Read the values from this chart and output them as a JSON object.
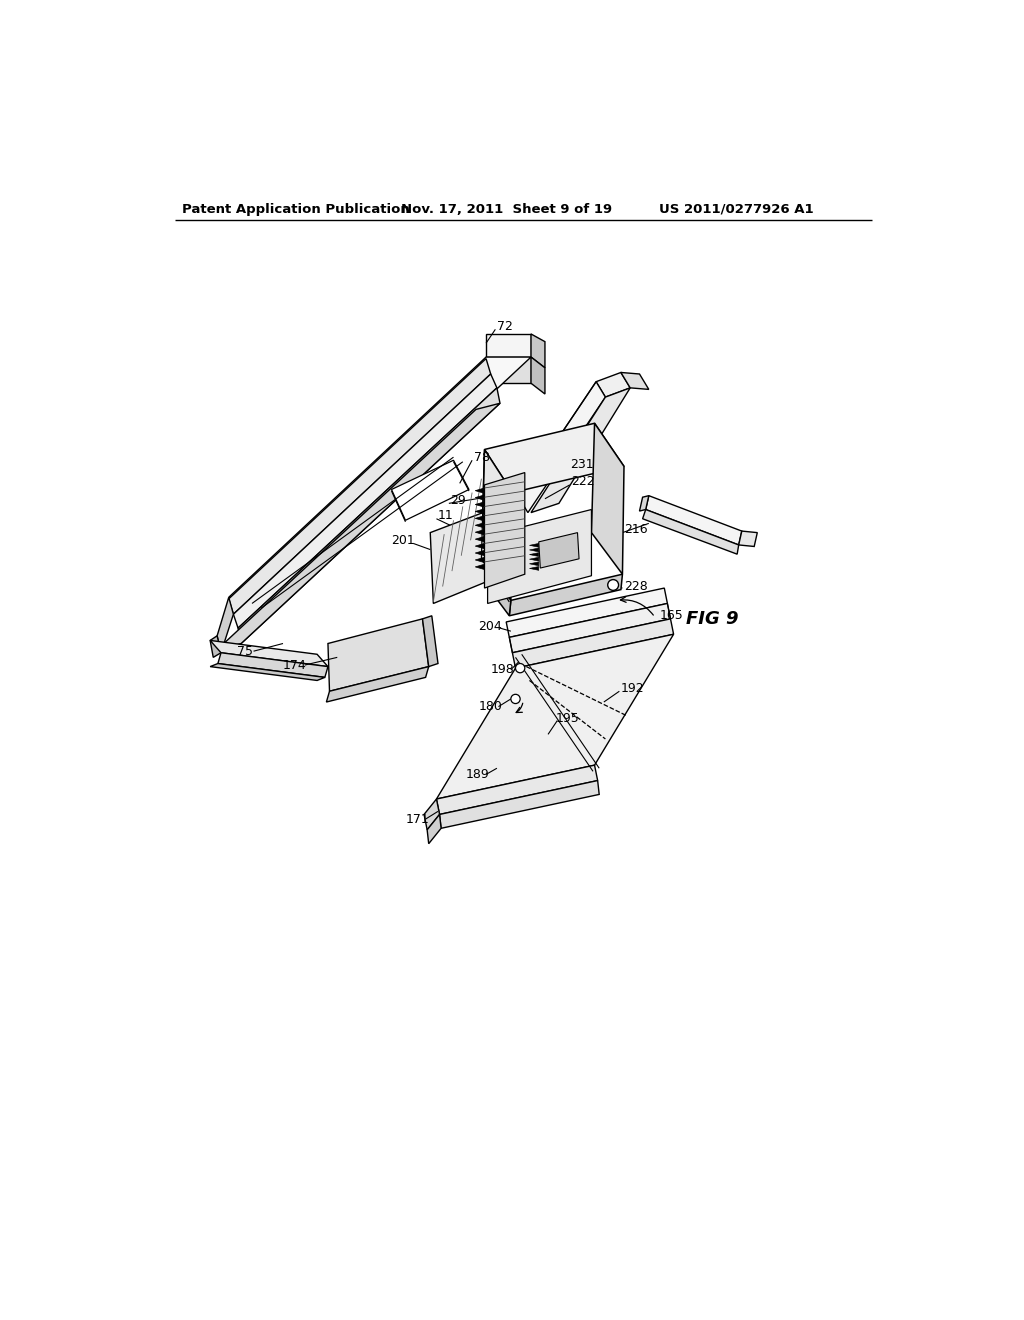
{
  "bg": "#ffffff",
  "header_left": "Patent Application Publication",
  "header_mid": "Nov. 17, 2011  Sheet 9 of 19",
  "header_right": "US 2011/0277926 A1",
  "lc": "#000000",
  "lw": 1.0,
  "fw": 9.5
}
